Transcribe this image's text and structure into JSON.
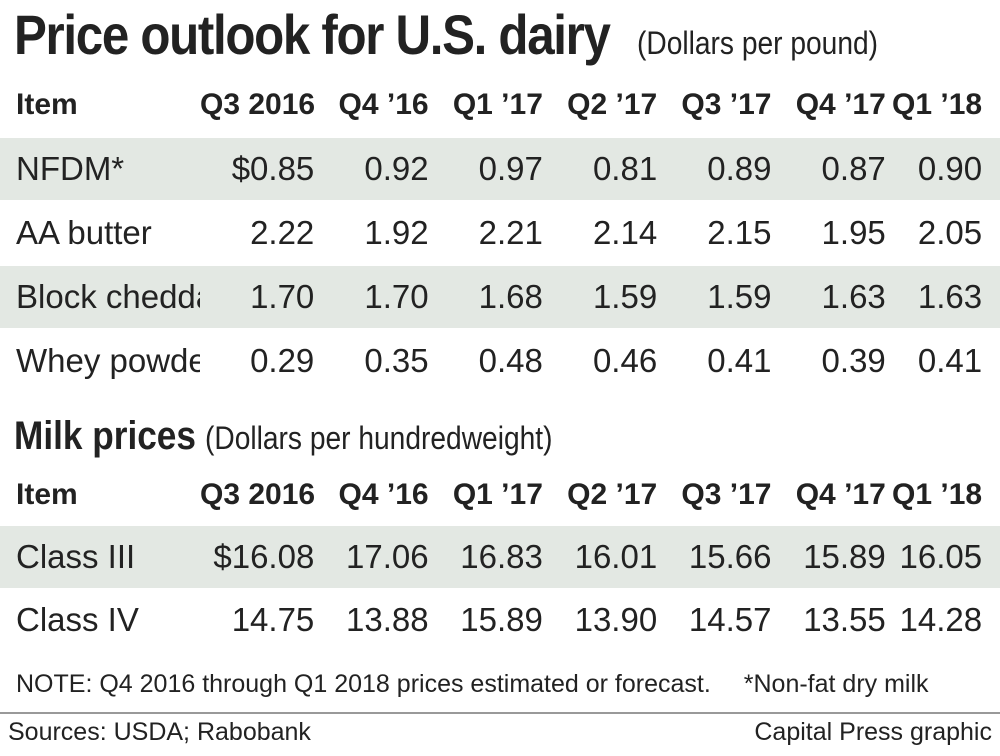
{
  "title": "Price outlook for U.S. dairy",
  "title_unit": "(Dollars per pound)",
  "columns": [
    "Item",
    "Q3 2016",
    "Q4 ’16",
    "Q1 ’17",
    "Q2 ’17",
    "Q3 ’17",
    "Q4 ’17",
    "Q1 ’18"
  ],
  "dairy_rows": [
    {
      "item": "NFDM*",
      "values": [
        "$0.85",
        "0.92",
        "0.97",
        "0.81",
        "0.89",
        "0.87",
        "0.90"
      ]
    },
    {
      "item": "AA butter",
      "values": [
        "2.22",
        "1.92",
        "2.21",
        "2.14",
        "2.15",
        "1.95",
        "2.05"
      ]
    },
    {
      "item": "Block cheddar",
      "values": [
        "1.70",
        "1.70",
        "1.68",
        "1.59",
        "1.59",
        "1.63",
        "1.63"
      ]
    },
    {
      "item": "Whey powder",
      "values": [
        "0.29",
        "0.35",
        "0.48",
        "0.46",
        "0.41",
        "0.39",
        "0.41"
      ]
    }
  ],
  "milk_title": "Milk prices",
  "milk_unit": "(Dollars per hundredweight)",
  "milk_rows": [
    {
      "item": "Class III",
      "values": [
        "$16.08",
        "17.06",
        "16.83",
        "16.01",
        "15.66",
        "15.89",
        "16.05"
      ]
    },
    {
      "item": "Class IV",
      "values": [
        "14.75",
        "13.88",
        "15.89",
        "13.90",
        "14.57",
        "13.55",
        "14.28"
      ]
    }
  ],
  "note": "NOTE: Q4 2016 through Q1 2018 prices estimated or forecast.",
  "footnote": "*Non-fat dry milk",
  "sources": "Sources: USDA; Rabobank",
  "credit": "Capital Press graphic",
  "colors": {
    "shade": "#e3e8e3",
    "text": "#222222",
    "rule": "#999999"
  },
  "chart_data": {
    "type": "table",
    "title": "Price outlook for U.S. dairy",
    "columns": [
      "Item",
      "Q3 2016",
      "Q4 ’16",
      "Q1 ’17",
      "Q2 ’17",
      "Q3 ’17",
      "Q4 ’17",
      "Q1 ’18"
    ],
    "tables": [
      {
        "name": "Dairy products (Dollars per pound)",
        "rows": [
          [
            "NFDM*",
            0.85,
            0.92,
            0.97,
            0.81,
            0.89,
            0.87,
            0.9
          ],
          [
            "AA butter",
            2.22,
            1.92,
            2.21,
            2.14,
            2.15,
            1.95,
            2.05
          ],
          [
            "Block cheddar",
            1.7,
            1.7,
            1.68,
            1.59,
            1.59,
            1.63,
            1.63
          ],
          [
            "Whey powder",
            0.29,
            0.35,
            0.48,
            0.46,
            0.41,
            0.39,
            0.41
          ]
        ]
      },
      {
        "name": "Milk prices (Dollars per hundredweight)",
        "rows": [
          [
            "Class III",
            16.08,
            17.06,
            16.83,
            16.01,
            15.66,
            15.89,
            16.05
          ],
          [
            "Class IV",
            14.75,
            13.88,
            15.89,
            13.9,
            14.57,
            13.55,
            14.28
          ]
        ]
      }
    ]
  }
}
